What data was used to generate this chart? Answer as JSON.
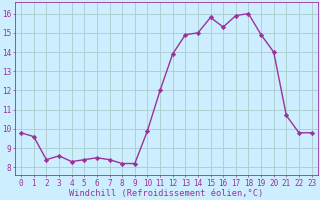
{
  "x": [
    0,
    1,
    2,
    3,
    4,
    5,
    6,
    7,
    8,
    9,
    10,
    11,
    12,
    13,
    14,
    15,
    16,
    17,
    18,
    19,
    20,
    21,
    22,
    23
  ],
  "y": [
    9.8,
    9.6,
    8.4,
    8.6,
    8.3,
    8.4,
    8.5,
    8.4,
    8.2,
    8.2,
    9.9,
    12.0,
    13.9,
    14.9,
    15.0,
    15.8,
    15.3,
    15.9,
    16.0,
    14.9,
    14.0,
    10.7,
    9.8,
    9.8
  ],
  "line_color": "#993399",
  "marker": "D",
  "markersize": 2.2,
  "linewidth": 1.0,
  "bg_color": "#cceeff",
  "grid_color": "#aacccc",
  "xlabel": "Windchill (Refroidissement éolien,°C)",
  "xlabel_color": "#993399",
  "xlabel_fontsize": 6.2,
  "tick_color": "#993399",
  "tick_fontsize": 5.5,
  "ytick_vals": [
    8,
    9,
    10,
    11,
    12,
    13,
    14,
    15,
    16
  ],
  "ylim": [
    7.6,
    16.6
  ],
  "xlim": [
    -0.5,
    23.5
  ]
}
